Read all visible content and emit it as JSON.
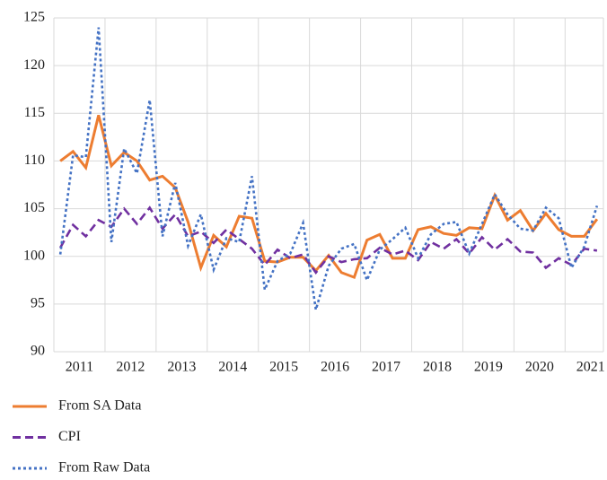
{
  "chart_data": {
    "type": "line",
    "categories": [
      "2011",
      null,
      null,
      null,
      "2012",
      null,
      null,
      null,
      "2013",
      null,
      null,
      null,
      "2014",
      null,
      null,
      null,
      "2015",
      null,
      null,
      null,
      "2016",
      null,
      null,
      null,
      "2017",
      null,
      null,
      null,
      "2018",
      null,
      null,
      null,
      "2019",
      null,
      null,
      null,
      "2020",
      null,
      null,
      null,
      "2021",
      null,
      null
    ],
    "series": [
      {
        "name": "From SA Data",
        "color": "#ed7d31",
        "dash": "solid",
        "values": [
          110,
          111,
          109.3,
          114.8,
          109.5,
          110.9,
          110,
          108,
          108.4,
          107.2,
          103.6,
          98.8,
          102.2,
          101,
          104.2,
          104,
          99.5,
          99.4,
          99.9,
          99.9,
          98.5,
          100.1,
          98.3,
          97.8,
          101.7,
          102.3,
          99.8,
          99.8,
          102.8,
          103.1,
          102.4,
          102.2,
          103,
          102.9,
          106.4,
          103.8,
          104.8,
          102.7,
          104.5,
          102.8,
          102.1,
          102.1,
          103.9
        ]
      },
      {
        "name": "CPI",
        "color": "#7030a0",
        "dash": "dashed",
        "values": [
          100.9,
          103.3,
          102.1,
          103.8,
          103.1,
          105,
          103.4,
          105.1,
          102.9,
          104.4,
          102.1,
          102.6,
          101.4,
          102.8,
          101.8,
          100.8,
          99.1,
          100.7,
          99.8,
          100.2,
          98.3,
          100,
          99.4,
          99.7,
          99.8,
          100.9,
          100.2,
          100.6,
          99.6,
          101.5,
          100.8,
          101.8,
          100.3,
          102,
          100.7,
          101.8,
          100.5,
          100.4,
          98.8,
          99.8,
          99.1,
          100.8,
          100.6
        ]
      },
      {
        "name": "From Raw Data",
        "color": "#4472c4",
        "dash": "dotted",
        "values": [
          100.2,
          110.6,
          110.4,
          124,
          101.5,
          111.3,
          108.7,
          116.4,
          102.1,
          107.7,
          101.1,
          104.4,
          98.6,
          101.9,
          101.5,
          108.4,
          96.5,
          99.5,
          100.3,
          103.5,
          94.4,
          99,
          100.8,
          101.3,
          97.5,
          100.7,
          101.8,
          103,
          99.8,
          102.3,
          103.4,
          103.6,
          100.3,
          103.4,
          106.5,
          104.4,
          102.9,
          102.7,
          105.1,
          104,
          98.8,
          101,
          105.3
        ]
      }
    ],
    "ylim": [
      90,
      125
    ],
    "yticks": [
      90,
      95,
      100,
      105,
      110,
      115,
      120,
      125
    ],
    "grid": true,
    "legend": "bottom-left"
  }
}
